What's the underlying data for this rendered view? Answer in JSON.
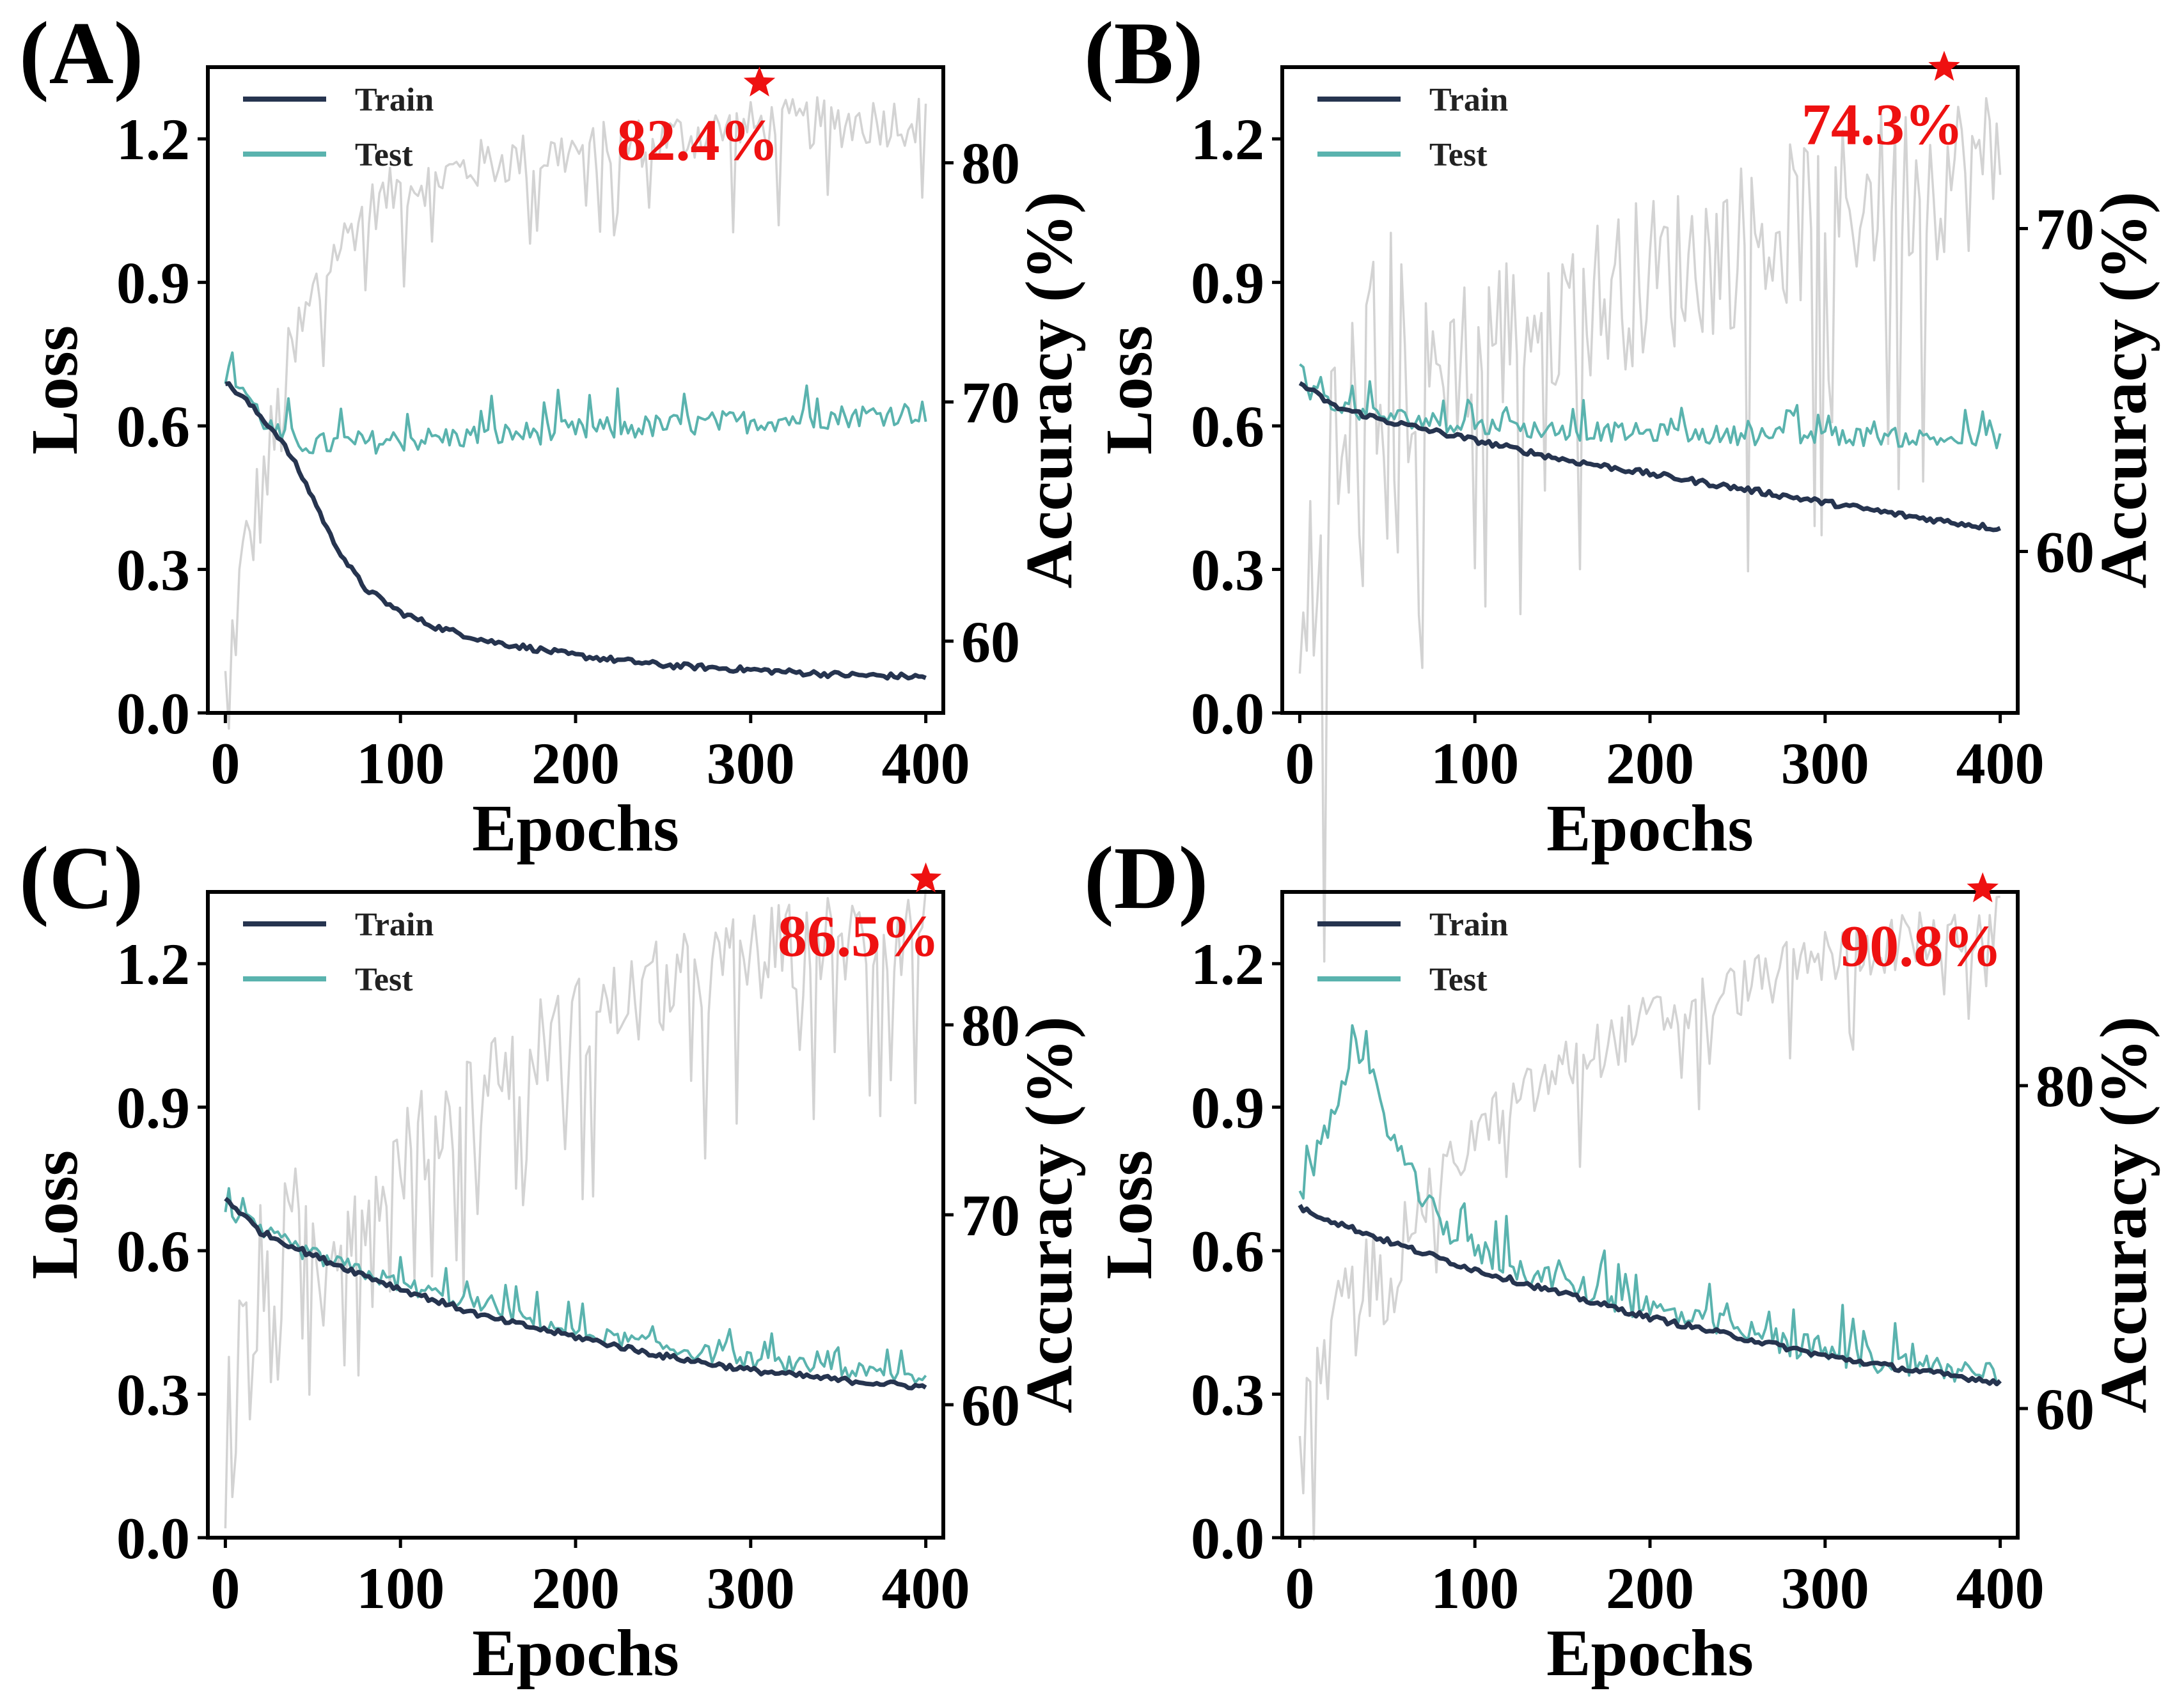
{
  "chart_data": [
    {
      "type": "line",
      "panel_label": "(A)",
      "xlabel": "Epochs",
      "ylabel": "Loss",
      "y2label": "Accuracy (%)",
      "xlim": [
        -10,
        410
      ],
      "ylim": [
        0,
        1.35
      ],
      "y2lim": [
        57,
        84
      ],
      "xticks": [
        0,
        100,
        200,
        300,
        400
      ],
      "yticks": [
        0.0,
        0.3,
        0.6,
        0.9,
        1.2
      ],
      "y2ticks": [
        60,
        70,
        80
      ],
      "legend": [
        "Train",
        "Test"
      ],
      "best_label": "82.4%",
      "best_epoch": 305,
      "best_accuracy": 82.4,
      "series": [
        {
          "name": "Train",
          "x": [
            0,
            10,
            20,
            30,
            40,
            50,
            60,
            70,
            80,
            100,
            120,
            150,
            200,
            250,
            300,
            350,
            400
          ],
          "values": [
            0.69,
            0.66,
            0.62,
            0.58,
            0.52,
            0.45,
            0.37,
            0.31,
            0.26,
            0.21,
            0.18,
            0.15,
            0.12,
            0.1,
            0.09,
            0.08,
            0.075
          ]
        },
        {
          "name": "Test",
          "x": [
            0,
            10,
            20,
            30,
            50,
            100,
            150,
            200,
            250,
            300,
            350,
            400
          ],
          "values": [
            0.71,
            0.68,
            0.62,
            0.58,
            0.56,
            0.57,
            0.58,
            0.59,
            0.6,
            0.61,
            0.62,
            0.63
          ]
        },
        {
          "name": "Test accuracy",
          "axis": "right",
          "x": [
            0,
            10,
            20,
            30,
            40,
            50,
            60,
            80,
            100,
            150,
            200,
            250,
            300,
            350,
            400
          ],
          "values": [
            58,
            63,
            66,
            69,
            72,
            74,
            76,
            78,
            79,
            80,
            80.5,
            81,
            81.5,
            81.7,
            81.8
          ]
        }
      ]
    },
    {
      "type": "line",
      "panel_label": "(B)",
      "xlabel": "Epochs",
      "ylabel": "Loss",
      "y2label": "Accuracy (%)",
      "xlim": [
        -10,
        410
      ],
      "ylim": [
        0,
        1.35
      ],
      "y2lim": [
        55,
        75
      ],
      "xticks": [
        0,
        100,
        200,
        300,
        400
      ],
      "yticks": [
        0.0,
        0.3,
        0.6,
        0.9,
        1.2
      ],
      "y2ticks": [
        60,
        70
      ],
      "legend": [
        "Train",
        "Test"
      ],
      "best_label": "74.3%",
      "best_epoch": 368,
      "best_accuracy": 74.3,
      "series": [
        {
          "name": "Train",
          "x": [
            0,
            20,
            50,
            100,
            150,
            200,
            250,
            300,
            350,
            400
          ],
          "values": [
            0.69,
            0.64,
            0.61,
            0.57,
            0.53,
            0.5,
            0.47,
            0.44,
            0.41,
            0.385
          ]
        },
        {
          "name": "Test",
          "x": [
            0,
            20,
            50,
            100,
            150,
            200,
            250,
            300,
            350,
            400
          ],
          "values": [
            0.69,
            0.64,
            0.62,
            0.6,
            0.59,
            0.585,
            0.58,
            0.58,
            0.575,
            0.57
          ]
        },
        {
          "name": "Test accuracy",
          "axis": "right",
          "x": [
            0,
            10,
            20,
            30,
            40,
            50,
            75,
            100,
            150,
            200,
            250,
            300,
            350,
            400
          ],
          "values": [
            56,
            60,
            62,
            63,
            64,
            64.5,
            65.5,
            66.5,
            67.5,
            68.5,
            69.5,
            70.5,
            71.5,
            72
          ]
        }
      ]
    },
    {
      "type": "line",
      "panel_label": "(C)",
      "xlabel": "Epochs",
      "ylabel": "Loss",
      "y2label": "Accuracy (%)",
      "xlim": [
        -10,
        410
      ],
      "ylim": [
        0,
        1.35
      ],
      "y2lim": [
        53,
        87
      ],
      "xticks": [
        0,
        100,
        200,
        300,
        400
      ],
      "yticks": [
        0.0,
        0.3,
        0.6,
        0.9,
        1.2
      ],
      "y2ticks": [
        60,
        70,
        80
      ],
      "legend": [
        "Train",
        "Test"
      ],
      "best_label": "86.5%",
      "best_epoch": 400,
      "best_accuracy": 86.5,
      "series": [
        {
          "name": "Train",
          "x": [
            0,
            20,
            50,
            100,
            150,
            200,
            250,
            300,
            350,
            400
          ],
          "values": [
            0.71,
            0.64,
            0.59,
            0.52,
            0.46,
            0.42,
            0.38,
            0.35,
            0.33,
            0.315
          ]
        },
        {
          "name": "Test",
          "x": [
            0,
            20,
            50,
            100,
            150,
            200,
            250,
            300,
            350,
            400
          ],
          "values": [
            0.69,
            0.64,
            0.59,
            0.53,
            0.48,
            0.43,
            0.4,
            0.37,
            0.35,
            0.335
          ]
        },
        {
          "name": "Test accuracy",
          "axis": "right",
          "x": [
            0,
            10,
            20,
            40,
            60,
            80,
            100,
            130,
            160,
            200,
            250,
            300,
            350,
            400
          ],
          "values": [
            58,
            62,
            65,
            67,
            69,
            71,
            73,
            75.5,
            78,
            80,
            82,
            83.5,
            84.5,
            85
          ]
        }
      ]
    },
    {
      "type": "line",
      "panel_label": "(D)",
      "xlabel": "Epochs",
      "ylabel": "Loss",
      "y2label": "Accuracy (%)",
      "xlim": [
        -10,
        410
      ],
      "ylim": [
        0,
        1.35
      ],
      "y2lim": [
        52,
        92
      ],
      "xticks": [
        0,
        100,
        200,
        300,
        400
      ],
      "yticks": [
        0.0,
        0.3,
        0.6,
        0.9,
        1.2
      ],
      "y2ticks": [
        60,
        80
      ],
      "legend": [
        "Train",
        "Test"
      ],
      "best_label": "90.8%",
      "best_epoch": 390,
      "best_accuracy": 90.8,
      "series": [
        {
          "name": "Train",
          "x": [
            0,
            20,
            50,
            100,
            150,
            200,
            250,
            300,
            350,
            400
          ],
          "values": [
            0.69,
            0.66,
            0.62,
            0.56,
            0.51,
            0.46,
            0.42,
            0.38,
            0.35,
            0.325
          ]
        },
        {
          "name": "Test",
          "x": [
            0,
            10,
            20,
            30,
            40,
            50,
            60,
            70,
            80,
            100,
            150,
            200,
            250,
            300,
            350,
            400
          ],
          "values": [
            0.72,
            0.8,
            0.9,
            1.0,
            0.97,
            0.87,
            0.78,
            0.71,
            0.66,
            0.6,
            0.53,
            0.48,
            0.43,
            0.39,
            0.36,
            0.34
          ]
        },
        {
          "name": "Test accuracy",
          "axis": "right",
          "x": [
            0,
            10,
            20,
            30,
            40,
            50,
            60,
            80,
            100,
            150,
            200,
            250,
            300,
            350,
            400
          ],
          "values": [
            57,
            61,
            64,
            66,
            67.5,
            69,
            71,
            74,
            77,
            81,
            84,
            86,
            88,
            89,
            90
          ]
        }
      ]
    }
  ]
}
